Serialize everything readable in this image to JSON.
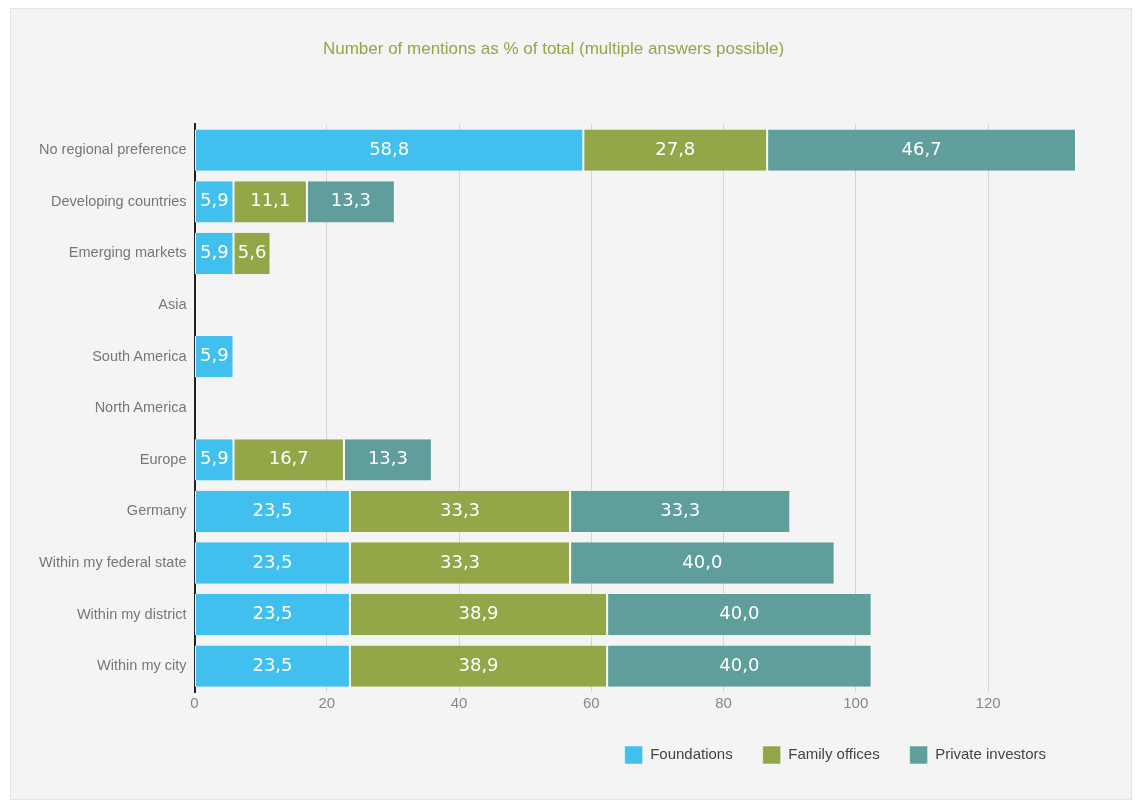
{
  "chart_data": {
    "type": "bar",
    "orientation": "horizontal",
    "stacked": true,
    "title": "Number of mentions as % of total (multiple answers possible)",
    "categories": [
      "No regional preference",
      "Developing countries",
      "Emerging markets",
      "Asia",
      "South America",
      "North America",
      "Europe",
      "Germany",
      "Within my federal state",
      "Within my district",
      "Within my city"
    ],
    "series": [
      {
        "name": "Foundations",
        "color": "#41bfef",
        "values": [
          58.8,
          5.9,
          5.9,
          null,
          5.9,
          null,
          5.9,
          23.5,
          23.5,
          23.5,
          23.5
        ],
        "value_labels": [
          "58,8",
          "5,9",
          "5,9",
          null,
          "5,9",
          null,
          "5,9",
          "23,5",
          "23,5",
          "23,5",
          "23,5"
        ]
      },
      {
        "name": "Family offices",
        "color": "#93a648",
        "values": [
          27.8,
          11.1,
          5.6,
          null,
          null,
          null,
          16.7,
          33.3,
          33.3,
          38.9,
          38.9
        ],
        "value_labels": [
          "27,8",
          "11,1",
          "5,6",
          null,
          null,
          null,
          "16,7",
          "33,3",
          "33,3",
          "38,9",
          "38,9"
        ]
      },
      {
        "name": "Private investors",
        "color": "#5f9e9b",
        "values": [
          46.7,
          13.3,
          null,
          null,
          null,
          null,
          13.3,
          33.3,
          40.0,
          40.0,
          40.0
        ],
        "value_labels": [
          "46,7",
          "13,3",
          null,
          null,
          null,
          null,
          "13,3",
          "33,3",
          "40,0",
          "40,0",
          "40,0"
        ]
      }
    ],
    "xlim": [
      0,
      133.3
    ],
    "xticks": [
      0,
      20,
      40,
      60,
      80,
      100,
      120
    ],
    "grid": "x",
    "legend": "bottom right"
  }
}
